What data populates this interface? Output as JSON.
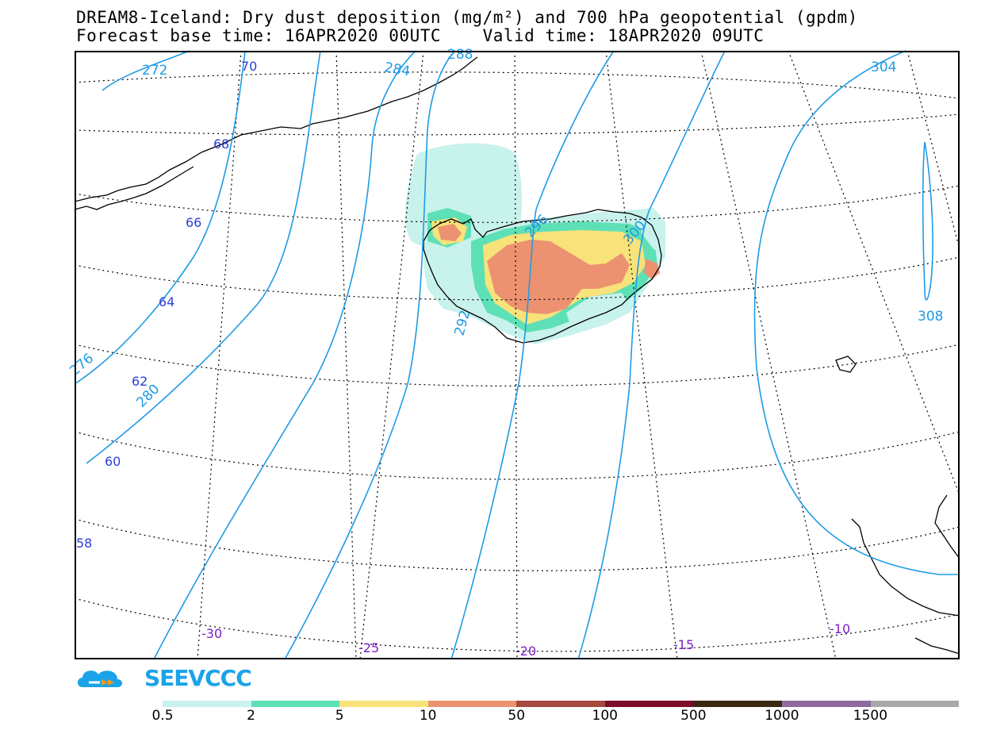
{
  "title": {
    "line1": "DREAM8-Iceland: Dry dust deposition (mg/m²) and 700 hPa geopotential (gpdm)",
    "line2": "Forecast base time: 16APR2020 00UTC    Valid time: 18APR2020 09UTC"
  },
  "map": {
    "latitude_labels": [
      "70",
      "68",
      "66",
      "64",
      "62",
      "60",
      "58"
    ],
    "longitude_labels": [
      "-30",
      "-25",
      "-20",
      "-15",
      "-10"
    ],
    "contour_labels": [
      "272",
      "276",
      "280",
      "284",
      "288",
      "292",
      "296",
      "300",
      "304",
      "308"
    ],
    "colors": {
      "contour": "#1f9be6",
      "lat_label": "#2b3fd9",
      "lon_label": "#7a1fc9",
      "coast": "#000000",
      "grid": "#000000"
    }
  },
  "logo": {
    "text": "SEEVCCC",
    "icon": "cloud-icon"
  },
  "legend": {
    "colors": [
      "#c8f2ec",
      "#5ee0b6",
      "#f8e27a",
      "#ec9270",
      "#a5493f",
      "#7c0b2c",
      "#3b2a12",
      "#8f6a9c",
      "#a9a9a9"
    ],
    "labels": [
      "0.5",
      "2",
      "5",
      "10",
      "50",
      "100",
      "500",
      "1000",
      "1500"
    ]
  }
}
